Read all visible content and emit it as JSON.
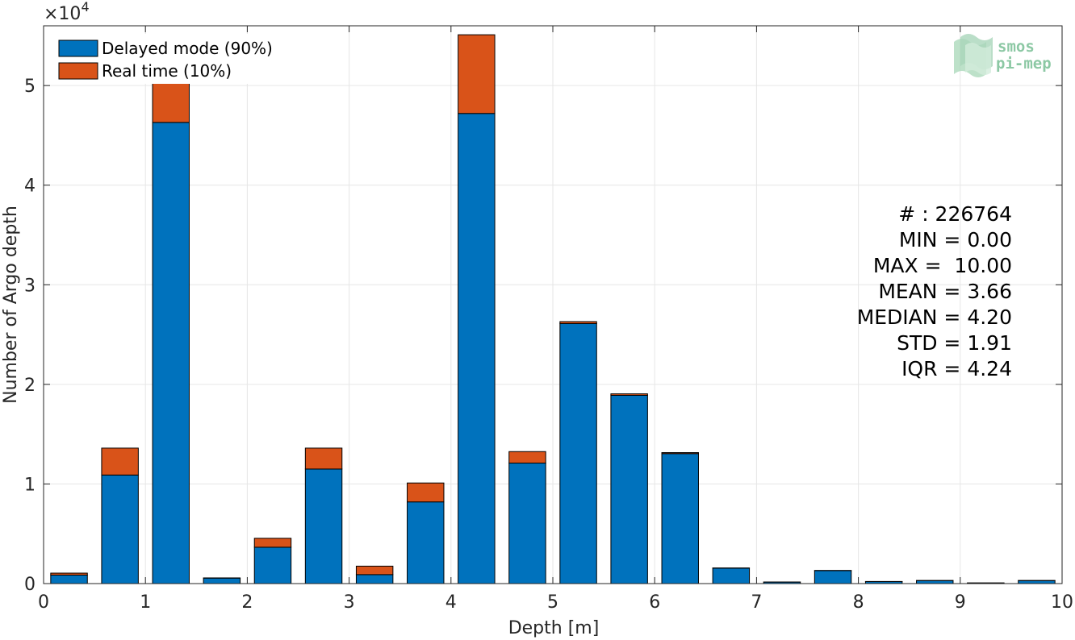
{
  "chart_data": {
    "type": "bar",
    "stacked": true,
    "xlabel": "Depth [m]",
    "ylabel": "Number of Argo depth",
    "exponent_label": "×10",
    "exponent_power": "4",
    "xlim": [
      0,
      10
    ],
    "ylim": [
      0,
      56000
    ],
    "x_ticks": [
      "0",
      "1",
      "2",
      "3",
      "4",
      "5",
      "6",
      "7",
      "8",
      "9",
      "10"
    ],
    "y_ticks": [
      "0",
      "1",
      "2",
      "3",
      "4",
      "5"
    ],
    "grid": true,
    "legend_position": "top-left",
    "bin_centers": [
      0.25,
      0.75,
      1.25,
      1.75,
      2.25,
      2.75,
      3.25,
      3.75,
      4.25,
      4.75,
      5.25,
      5.75,
      6.25,
      6.75,
      7.25,
      7.75,
      8.25,
      8.75,
      9.25,
      9.75
    ],
    "bar_width": 0.36,
    "series": [
      {
        "name": "Delayed mode (90%)",
        "color": "#0072bd",
        "values": [
          850,
          10900,
          46300,
          550,
          3650,
          11500,
          900,
          8200,
          47200,
          12100,
          26100,
          18900,
          13050,
          1550,
          150,
          1300,
          200,
          300,
          60,
          300
        ]
      },
      {
        "name": "Real time (10%)",
        "color": "#d95319",
        "values": [
          200,
          2700,
          4600,
          20,
          900,
          2100,
          850,
          1900,
          7900,
          1150,
          200,
          150,
          100,
          20,
          10,
          20,
          10,
          10,
          5,
          10
        ]
      }
    ],
    "stats": [
      "# : 226764",
      "MIN = 0.00",
      "MAX =  10.00",
      "MEAN = 3.66",
      "MEDIAN = 4.20",
      "STD = 1.91",
      "IQR = 4.24"
    ]
  },
  "logo": {
    "line1": "smos",
    "line2": "pi-mep"
  }
}
